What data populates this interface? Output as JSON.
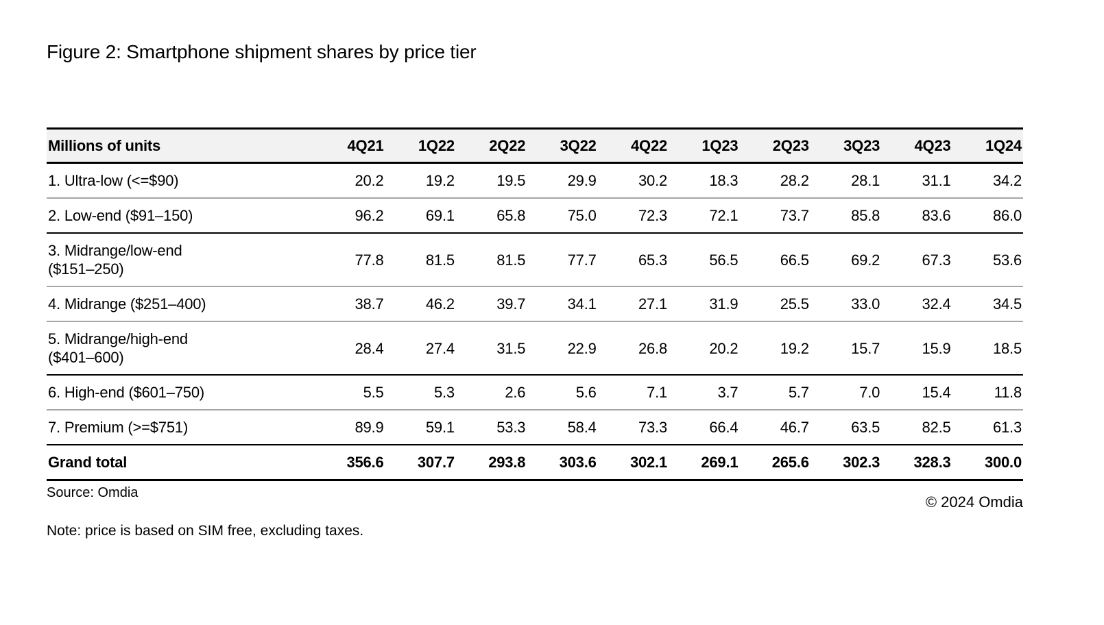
{
  "chart_data": {
    "type": "table",
    "title": "Figure 2: Smartphone shipment shares by price tier",
    "unit_header": "Millions of units",
    "quarter_headers": [
      "4Q21",
      "1Q22",
      "2Q22",
      "3Q22",
      "4Q22",
      "1Q23",
      "2Q23",
      "3Q23",
      "4Q23",
      "1Q24"
    ],
    "rows": [
      {
        "label_lines": [
          "1. Ultra-low (<=$90)"
        ],
        "values": [
          "20.2",
          "19.2",
          "19.5",
          "29.9",
          "30.2",
          "18.3",
          "28.2",
          "28.1",
          "31.1",
          "34.2"
        ],
        "divider": "gray",
        "bold": false
      },
      {
        "label_lines": [
          "2. Low-end ($91–150)"
        ],
        "values": [
          "96.2",
          "69.1",
          "65.8",
          "75.0",
          "72.3",
          "72.1",
          "73.7",
          "85.8",
          "83.6",
          "86.0"
        ],
        "divider": "black",
        "bold": false
      },
      {
        "label_lines": [
          "3. Midrange/low-end",
          "($151–250)"
        ],
        "values": [
          "77.8",
          "81.5",
          "81.5",
          "77.7",
          "65.3",
          "56.5",
          "66.5",
          "69.2",
          "67.3",
          "53.6"
        ],
        "divider": "gray",
        "bold": false
      },
      {
        "label_lines": [
          "4. Midrange ($251–400)"
        ],
        "values": [
          "38.7",
          "46.2",
          "39.7",
          "34.1",
          "27.1",
          "31.9",
          "25.5",
          "33.0",
          "32.4",
          "34.5"
        ],
        "divider": "gray",
        "bold": false
      },
      {
        "label_lines": [
          "5. Midrange/high-end",
          "($401–600)"
        ],
        "values": [
          "28.4",
          "27.4",
          "31.5",
          "22.9",
          "26.8",
          "20.2",
          "19.2",
          "15.7",
          "15.9",
          "18.5"
        ],
        "divider": "black",
        "bold": false
      },
      {
        "label_lines": [
          "6. High-end ($601–750)"
        ],
        "values": [
          "5.5",
          "5.3",
          "2.6",
          "5.6",
          "7.1",
          "3.7",
          "5.7",
          "7.0",
          "15.4",
          "11.8"
        ],
        "divider": "gray",
        "bold": false
      },
      {
        "label_lines": [
          "7. Premium (>=$751)"
        ],
        "values": [
          "89.9",
          "59.1",
          "53.3",
          "58.4",
          "73.3",
          "66.4",
          "46.7",
          "63.5",
          "82.5",
          "61.3"
        ],
        "divider": "black",
        "bold": false
      },
      {
        "label_lines": [
          "Grand total"
        ],
        "values": [
          "356.6",
          "307.7",
          "293.8",
          "303.6",
          "302.1",
          "269.1",
          "265.6",
          "302.3",
          "328.3",
          "300.0"
        ],
        "divider": "black",
        "bold": true
      }
    ],
    "source": "Source: Omdia",
    "copyright": "© 2024 Omdia",
    "note": "Note: price is based on SIM free, excluding taxes.",
    "layout_hints": {
      "header_bg": "#f2f2f2",
      "rule_black": "#000000",
      "rule_gray": "#a6a6a6",
      "text_color": "#000000",
      "background": "#ffffff",
      "value_alignment": "right"
    }
  }
}
